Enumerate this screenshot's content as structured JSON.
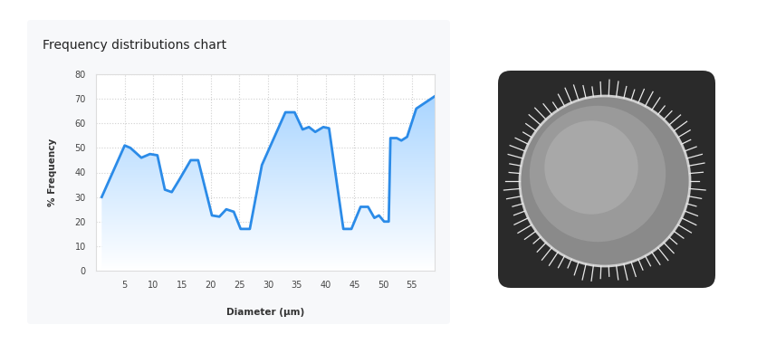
{
  "chart_data": {
    "type": "area",
    "title": "Frequency distributions chart",
    "x_label": "Diameter (μm)",
    "y_label": "% Frequency",
    "x": [
      1.0,
      5.0,
      6.0,
      7.9,
      9.4,
      10.7,
      12.0,
      13.2,
      14.5,
      16.5,
      17.8,
      20.2,
      21.5,
      22.7,
      24.0,
      25.2,
      26.8,
      28.9,
      33.0,
      34.6,
      36.0,
      37.1,
      38.2,
      39.6,
      40.6,
      43.1,
      44.5,
      46.1,
      47.4,
      48.5,
      49.3,
      50.2,
      51.0,
      51.3,
      52.4,
      53.2,
      54.2,
      55.8,
      59.0
    ],
    "values": [
      30,
      51,
      50,
      46,
      47.5,
      47,
      33,
      32,
      37,
      45,
      45,
      22.5,
      22,
      25,
      24,
      17,
      17,
      43,
      64.5,
      64.5,
      57.5,
      58.5,
      56.5,
      58.5,
      58,
      17,
      17,
      26,
      26,
      21.5,
      22.5,
      20,
      20,
      54,
      54,
      53,
      54.5,
      66,
      71
    ],
    "color": "#2b8be8",
    "xlim": [
      0,
      59
    ],
    "ylim": [
      0,
      80
    ],
    "xticks": [
      5,
      10,
      15,
      20,
      25,
      30,
      35,
      40,
      45,
      50,
      55
    ],
    "yticks": [
      0,
      10,
      20,
      30,
      40,
      50,
      60,
      70,
      80
    ],
    "grid": true
  }
}
